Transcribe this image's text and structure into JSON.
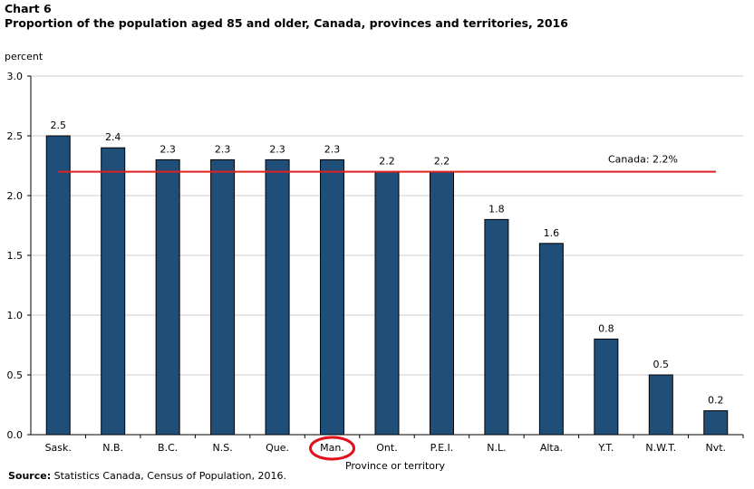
{
  "chart_label": "Chart 6",
  "chart_title": "Proportion  of the population  aged 85 and older, Canada, provinces and territories, 2016",
  "source_label": "Source:",
  "source_text": "Statistics Canada, Census of Population, 2016.",
  "chart_data": {
    "type": "bar",
    "title": "Proportion  of the population  aged 85 and older, Canada, provinces and territories, 2016",
    "xlabel": "Province or territory",
    "ylabel": "percent",
    "ylim": [
      0,
      3.0
    ],
    "yticks": [
      "0.0",
      "0.5",
      "1.0",
      "1.5",
      "2.0",
      "2.5",
      "3.0"
    ],
    "grid": true,
    "categories": [
      "Sask.",
      "N.B.",
      "B.C.",
      "N.S.",
      "Que.",
      "Man.",
      "Ont.",
      "P.E.I.",
      "N.L.",
      "Alta.",
      "Y.T.",
      "N.W.T.",
      "Nvt."
    ],
    "values": [
      2.5,
      2.4,
      2.3,
      2.3,
      2.3,
      2.3,
      2.2,
      2.2,
      1.8,
      1.6,
      0.8,
      0.5,
      0.2
    ],
    "value_labels": [
      "2.5",
      "2.4",
      "2.3",
      "2.3",
      "2.3",
      "2.3",
      "2.2",
      "2.2",
      "1.8",
      "1.6",
      "0.8",
      "0.5",
      "0.2"
    ],
    "reference_line": {
      "value": 2.2,
      "label": "Canada: 2.2%",
      "color": "#e02020"
    },
    "highlighted_category": "Man.",
    "colors": {
      "bar_fill": "#1f4e79",
      "bar_stroke": "#000000",
      "grid": "#cccccc",
      "axis": "#000000",
      "highlight_circle": "#e0101c"
    }
  }
}
